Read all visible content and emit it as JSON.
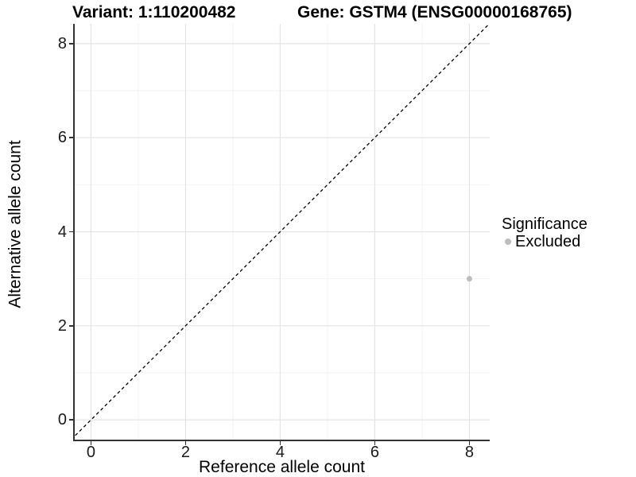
{
  "chart_data": {
    "type": "scatter",
    "titles": {
      "left": "Variant: 1:110200482",
      "right": "Gene: GSTM4 (ENSG00000168765)"
    },
    "xlabel": "Reference allele count",
    "ylabel": "Alternative allele count",
    "xlim": [
      -0.36,
      8.43
    ],
    "ylim": [
      -0.42,
      8.42
    ],
    "x_ticks": [
      0,
      2,
      4,
      6,
      8
    ],
    "y_ticks": [
      0,
      2,
      4,
      6,
      8
    ],
    "grid": {
      "major": true,
      "minor": true
    },
    "identity_line": {
      "style": "dashed",
      "color": "#000000",
      "from": -0.6,
      "to": 8.6
    },
    "series": [
      {
        "name": "Excluded",
        "color": "#bdbdbd",
        "point_size": 7,
        "points": [
          [
            8,
            3
          ]
        ]
      }
    ],
    "legend": {
      "title": "Significance",
      "position": "right",
      "items": [
        {
          "label": "Excluded",
          "color": "#bdbdbd"
        }
      ]
    }
  },
  "colors": {
    "grid_major": "#e4e4e4",
    "grid_minor": "#f2f2f2",
    "axis": "#333333",
    "text": "#000000"
  }
}
